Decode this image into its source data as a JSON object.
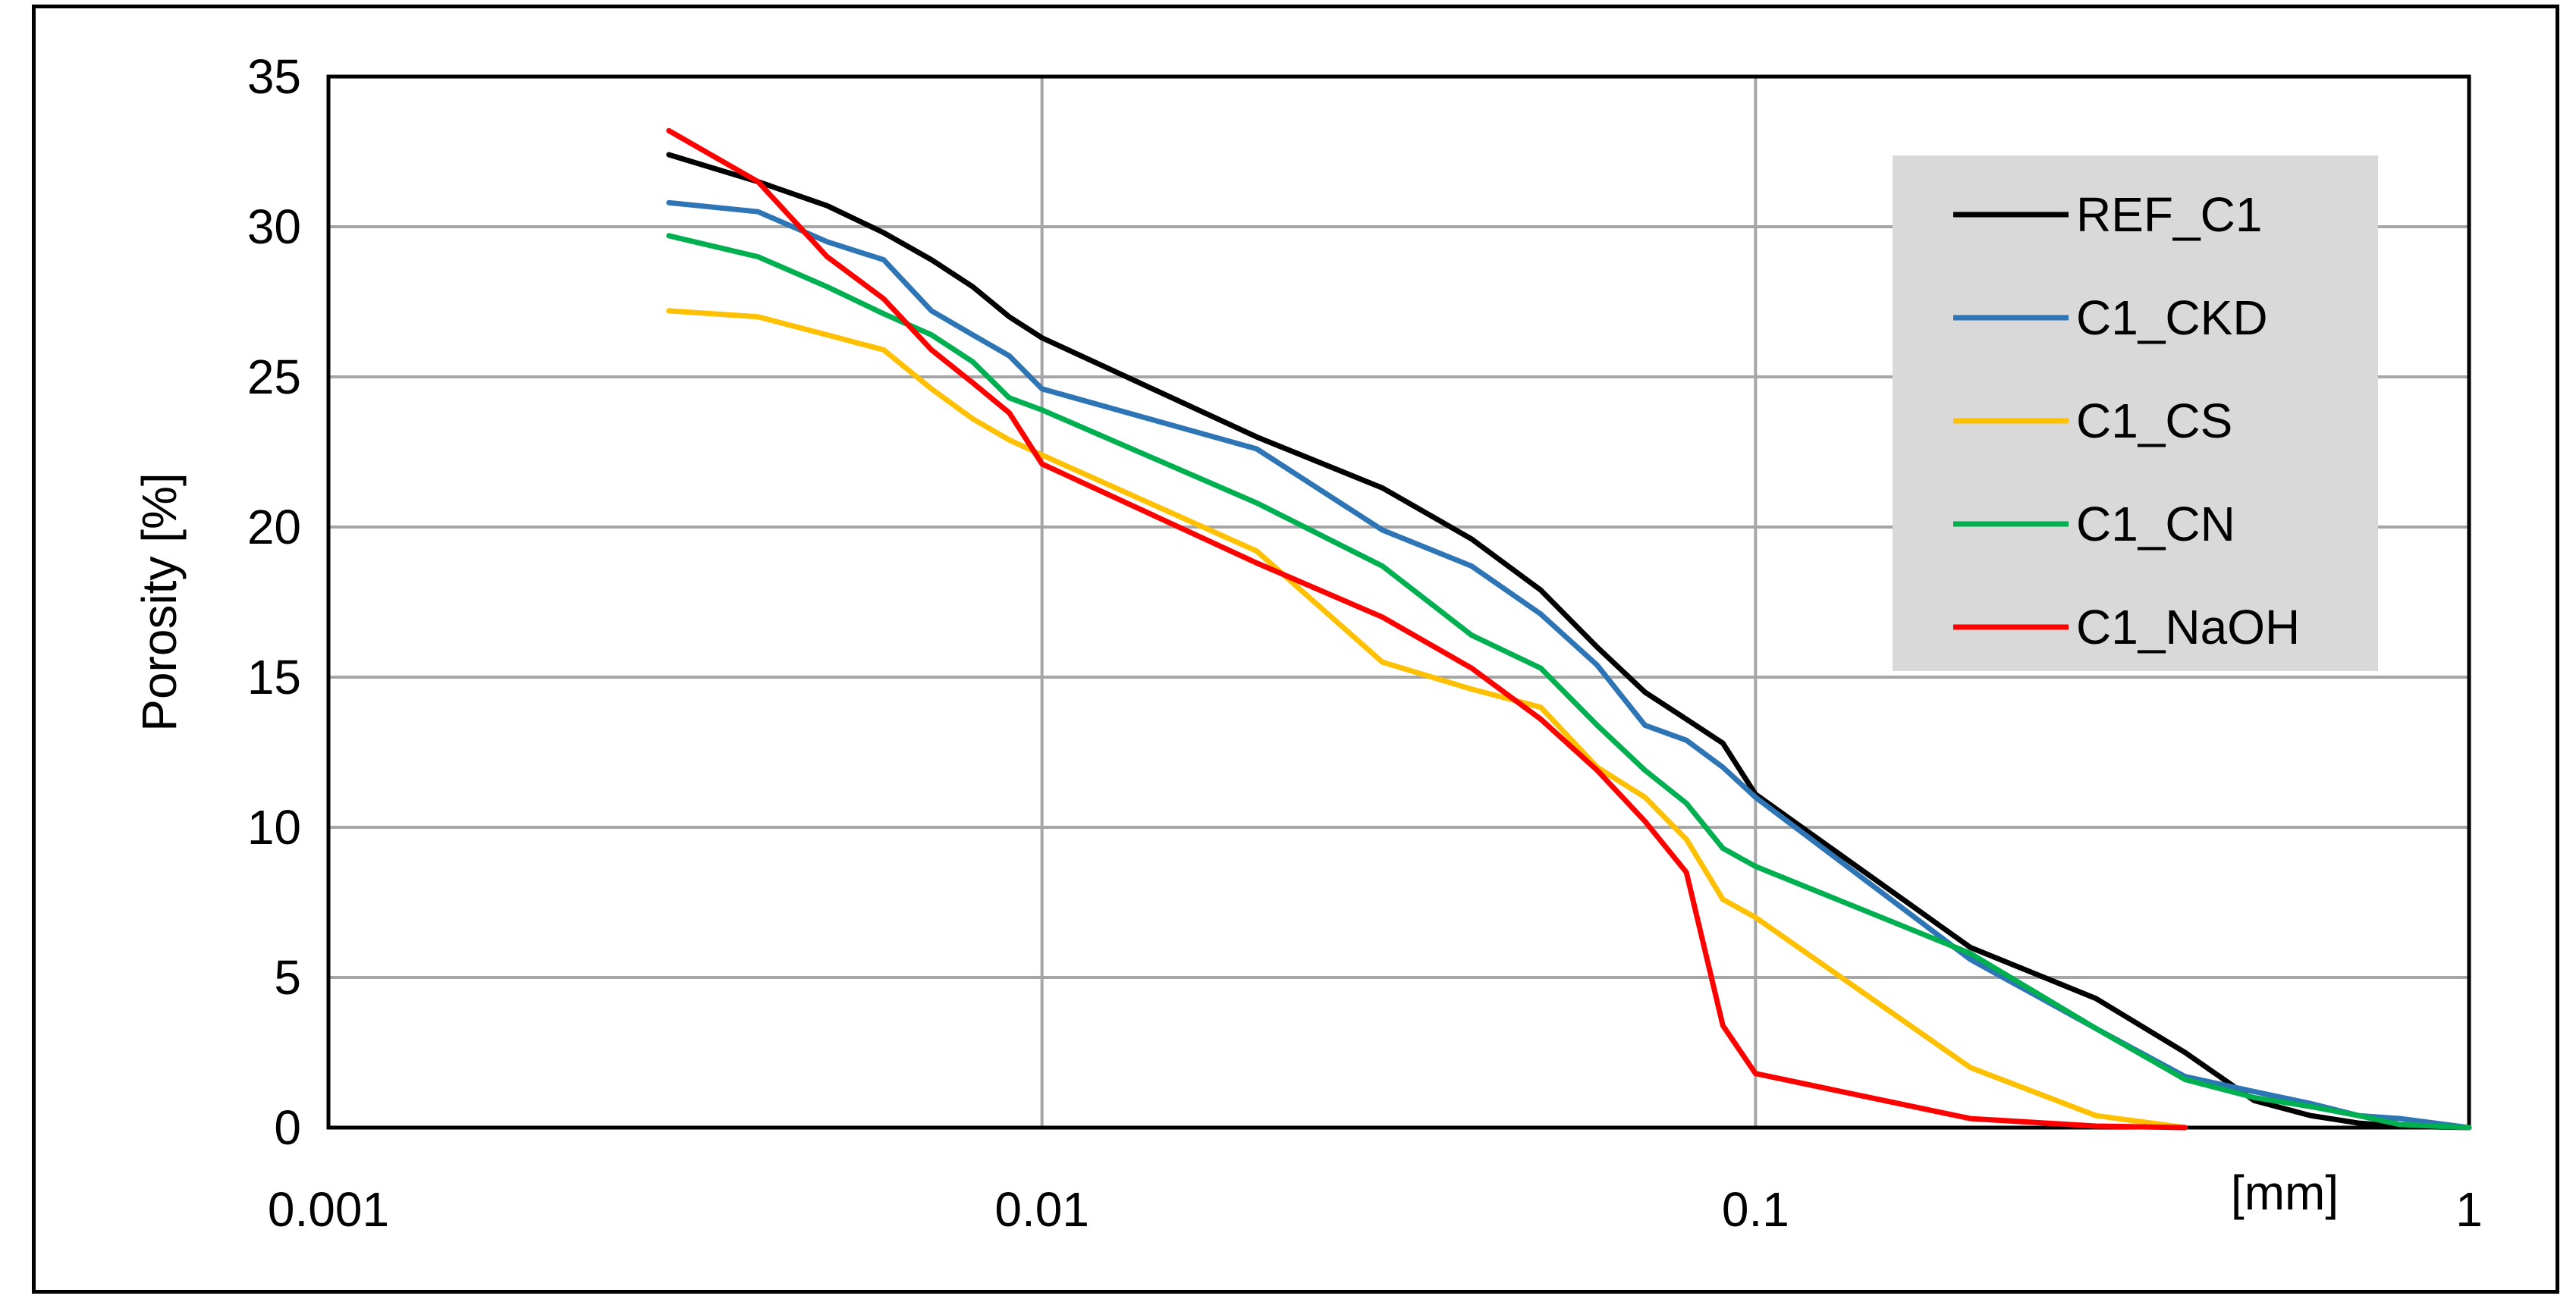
{
  "chart_data": {
    "type": "line",
    "title": "",
    "xlabel": "[mm]",
    "ylabel": "Porosity [%]",
    "xscale": "log",
    "xlim": [
      0.001,
      1
    ],
    "ylim": [
      0,
      35
    ],
    "x_ticks": [
      "0.001",
      "0.01",
      "0.1",
      "1"
    ],
    "y_ticks": [
      "0",
      "5",
      "10",
      "15",
      "20",
      "25",
      "30",
      "35"
    ],
    "grid": true,
    "legend_position": "top-right",
    "series": [
      {
        "name": "REF_C1",
        "color": "#000000",
        "points": [
          [
            0.003,
            32.4
          ],
          [
            0.004,
            31.5
          ],
          [
            0.005,
            30.7
          ],
          [
            0.006,
            29.8
          ],
          [
            0.007,
            28.9
          ],
          [
            0.008,
            28.0
          ],
          [
            0.009,
            27.0
          ],
          [
            0.01,
            26.3
          ],
          [
            0.02,
            23.0
          ],
          [
            0.03,
            21.3
          ],
          [
            0.04,
            19.6
          ],
          [
            0.05,
            17.9
          ],
          [
            0.06,
            16.0
          ],
          [
            0.07,
            14.5
          ],
          [
            0.08,
            13.6
          ],
          [
            0.09,
            12.8
          ],
          [
            0.1,
            11.1
          ],
          [
            0.2,
            6.0
          ],
          [
            0.3,
            4.3
          ],
          [
            0.4,
            2.5
          ],
          [
            0.5,
            0.9
          ],
          [
            0.6,
            0.4
          ],
          [
            0.7,
            0.15
          ],
          [
            0.8,
            0.05
          ],
          [
            1.0,
            0.0
          ]
        ]
      },
      {
        "name": "C1_CKD",
        "color": "#2e75b6",
        "points": [
          [
            0.003,
            30.8
          ],
          [
            0.004,
            30.5
          ],
          [
            0.005,
            29.5
          ],
          [
            0.006,
            28.9
          ],
          [
            0.007,
            27.2
          ],
          [
            0.008,
            26.4
          ],
          [
            0.009,
            25.7
          ],
          [
            0.01,
            24.6
          ],
          [
            0.02,
            22.6
          ],
          [
            0.03,
            19.9
          ],
          [
            0.04,
            18.7
          ],
          [
            0.05,
            17.1
          ],
          [
            0.06,
            15.4
          ],
          [
            0.07,
            13.4
          ],
          [
            0.08,
            12.9
          ],
          [
            0.09,
            12.0
          ],
          [
            0.1,
            11.0
          ],
          [
            0.2,
            5.6
          ],
          [
            0.3,
            3.3
          ],
          [
            0.4,
            1.7
          ],
          [
            0.5,
            1.2
          ],
          [
            0.6,
            0.8
          ],
          [
            0.7,
            0.4
          ],
          [
            0.8,
            0.3
          ],
          [
            1.0,
            0.0
          ]
        ]
      },
      {
        "name": "C1_CS",
        "color": "#ffc000",
        "points": [
          [
            0.003,
            27.2
          ],
          [
            0.004,
            27.0
          ],
          [
            0.005,
            26.4
          ],
          [
            0.006,
            25.9
          ],
          [
            0.007,
            24.6
          ],
          [
            0.008,
            23.6
          ],
          [
            0.009,
            22.9
          ],
          [
            0.01,
            22.4
          ],
          [
            0.02,
            19.2
          ],
          [
            0.03,
            15.5
          ],
          [
            0.04,
            14.6
          ],
          [
            0.05,
            14.0
          ],
          [
            0.06,
            12.0
          ],
          [
            0.07,
            11.0
          ],
          [
            0.08,
            9.6
          ],
          [
            0.09,
            7.6
          ],
          [
            0.1,
            7.0
          ],
          [
            0.2,
            2.0
          ],
          [
            0.3,
            0.4
          ],
          [
            0.4,
            0.0
          ]
        ]
      },
      {
        "name": "C1_CN",
        "color": "#00b050",
        "points": [
          [
            0.003,
            29.7
          ],
          [
            0.004,
            29.0
          ],
          [
            0.005,
            28.0
          ],
          [
            0.006,
            27.1
          ],
          [
            0.007,
            26.4
          ],
          [
            0.008,
            25.5
          ],
          [
            0.009,
            24.3
          ],
          [
            0.01,
            23.9
          ],
          [
            0.02,
            20.8
          ],
          [
            0.03,
            18.7
          ],
          [
            0.04,
            16.4
          ],
          [
            0.05,
            15.3
          ],
          [
            0.06,
            13.4
          ],
          [
            0.07,
            11.9
          ],
          [
            0.08,
            10.8
          ],
          [
            0.09,
            9.3
          ],
          [
            0.1,
            8.7
          ],
          [
            0.2,
            5.8
          ],
          [
            0.3,
            3.3
          ],
          [
            0.4,
            1.6
          ],
          [
            0.5,
            1.0
          ],
          [
            0.6,
            0.7
          ],
          [
            0.7,
            0.4
          ],
          [
            0.8,
            0.1
          ],
          [
            1.0,
            0.0
          ]
        ]
      },
      {
        "name": "C1_NaOH",
        "color": "#ff0000",
        "points": [
          [
            0.003,
            33.2
          ],
          [
            0.004,
            31.5
          ],
          [
            0.005,
            29.0
          ],
          [
            0.006,
            27.6
          ],
          [
            0.007,
            25.9
          ],
          [
            0.008,
            24.8
          ],
          [
            0.009,
            23.8
          ],
          [
            0.01,
            22.1
          ],
          [
            0.02,
            18.8
          ],
          [
            0.03,
            17.0
          ],
          [
            0.04,
            15.3
          ],
          [
            0.05,
            13.6
          ],
          [
            0.06,
            11.9
          ],
          [
            0.07,
            10.2
          ],
          [
            0.08,
            8.5
          ],
          [
            0.09,
            3.4
          ],
          [
            0.1,
            1.8
          ],
          [
            0.2,
            0.3
          ],
          [
            0.3,
            0.05
          ],
          [
            0.4,
            0.0
          ]
        ]
      }
    ]
  }
}
